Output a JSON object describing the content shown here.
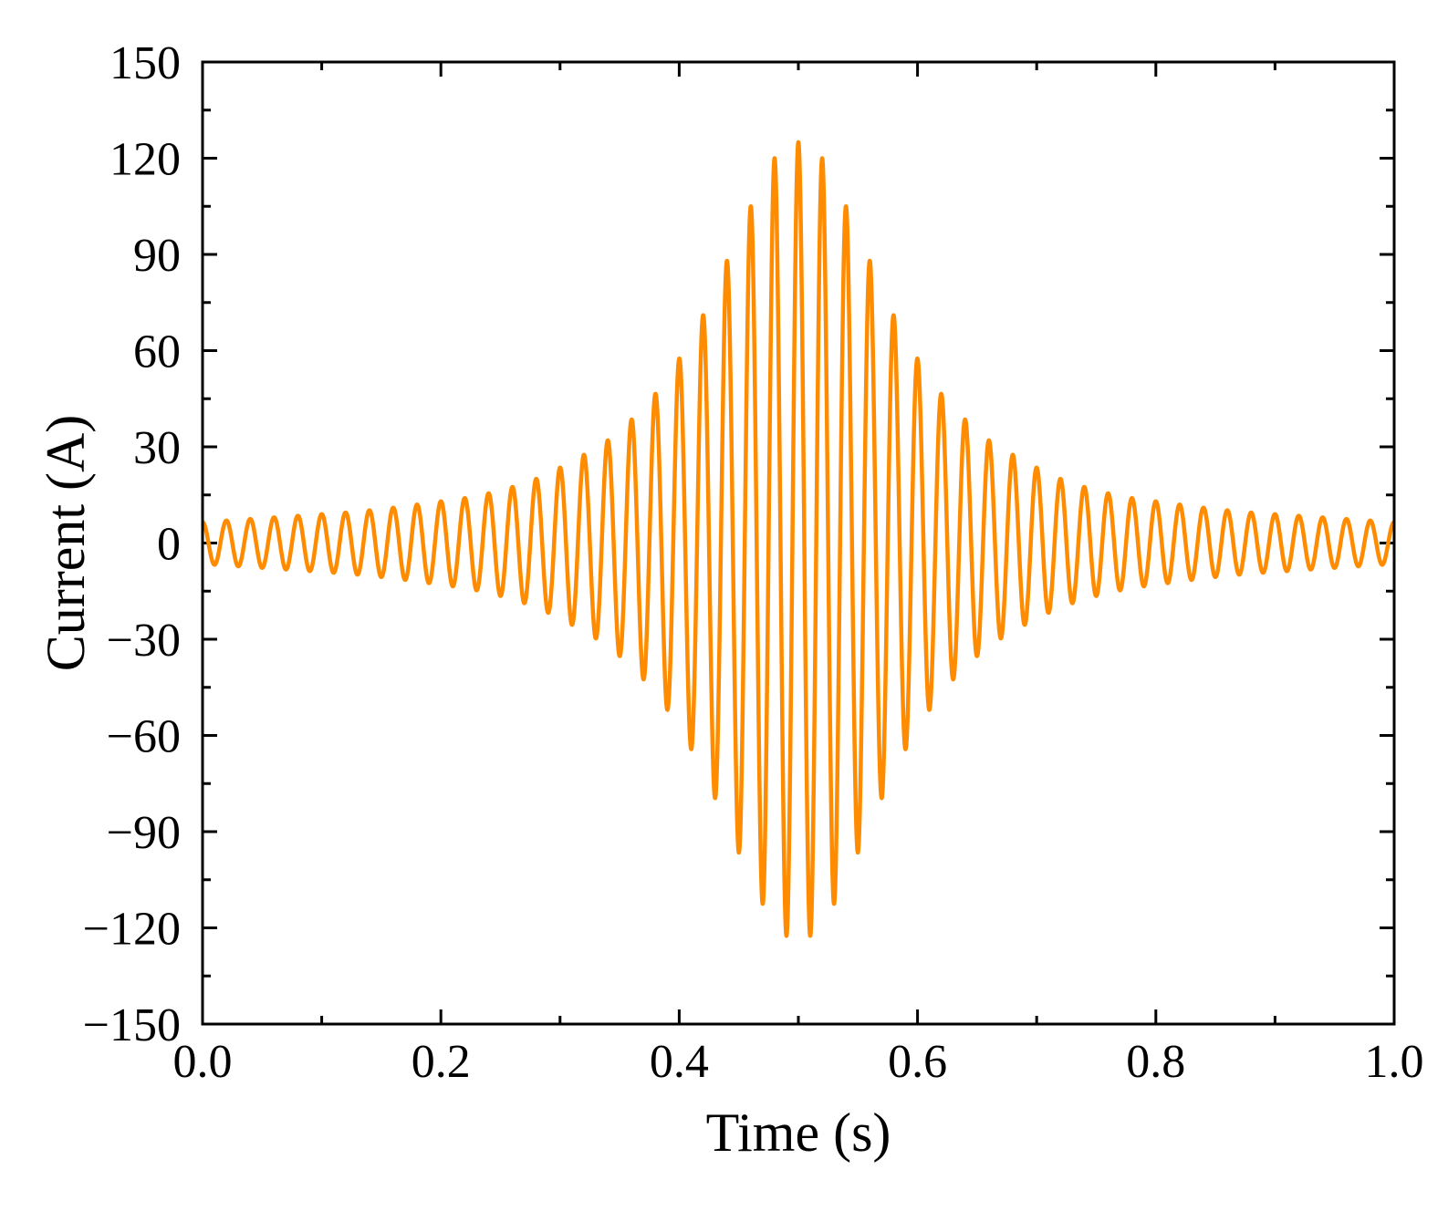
{
  "chart_data": {
    "type": "line",
    "title": "",
    "xlabel": "Time (s)",
    "ylabel": "Current (A)",
    "xlim": [
      0.0,
      1.0
    ],
    "ylim": [
      -150,
      150
    ],
    "x_ticks": [
      0.0,
      0.2,
      0.4,
      0.6,
      0.8,
      1.0
    ],
    "x_tick_labels": [
      "0.0",
      "0.2",
      "0.4",
      "0.6",
      "0.8",
      "1.0"
    ],
    "x_minor_step": 0.1,
    "y_ticks": [
      -150,
      -120,
      -90,
      -60,
      -30,
      0,
      30,
      60,
      90,
      120,
      150
    ],
    "y_tick_labels": [
      "−150",
      "−120",
      "−90",
      "−60",
      "−30",
      "0",
      "30",
      "60",
      "90",
      "120",
      "150"
    ],
    "y_minor_step": 15,
    "grid": false,
    "legend": "none",
    "series": [
      {
        "color": "#FF8C00",
        "carrier_frequency_hz": 50,
        "waveform": "cosine",
        "envelope": {
          "t": [
            0.0,
            0.02,
            0.04,
            0.06,
            0.08,
            0.1,
            0.12,
            0.14,
            0.16,
            0.18,
            0.2,
            0.22,
            0.24,
            0.26,
            0.28,
            0.3,
            0.32,
            0.34,
            0.36,
            0.38,
            0.4,
            0.42,
            0.44,
            0.46,
            0.48,
            0.5,
            0.52,
            0.54,
            0.56,
            0.58,
            0.6,
            0.62,
            0.64,
            0.66,
            0.68,
            0.7,
            0.72,
            0.74,
            0.76,
            0.78,
            0.8,
            0.82,
            0.84,
            0.86,
            0.88,
            0.9,
            0.92,
            0.94,
            0.96,
            0.98,
            1.0
          ],
          "amplitude": [
            6.5,
            7,
            7.5,
            8,
            8.5,
            9,
            9.5,
            10.2,
            11,
            12,
            13,
            14,
            15.5,
            17.5,
            20,
            23.5,
            27.5,
            32,
            38.5,
            46.5,
            57.5,
            71,
            88,
            105,
            120,
            125,
            120,
            105,
            88,
            71,
            57.5,
            46.5,
            38.5,
            32,
            27.5,
            23.5,
            20,
            17.5,
            15.5,
            14,
            13,
            12,
            11,
            10.2,
            9.5,
            9,
            8.5,
            8,
            7.5,
            7,
            6.5
          ]
        }
      }
    ]
  }
}
